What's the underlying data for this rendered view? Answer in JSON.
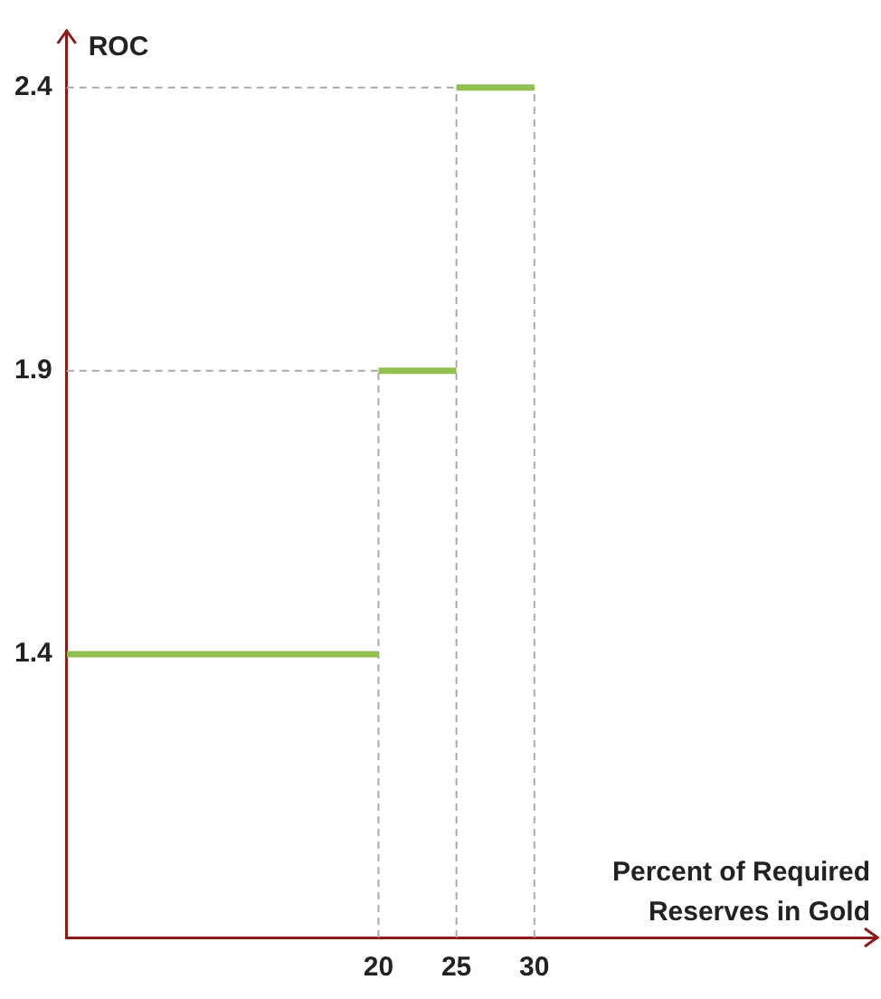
{
  "chart_data": {
    "type": "step",
    "ylabel": "ROC",
    "xlabel": "Percent of Required Reserves in Gold",
    "xlim": [
      0,
      52
    ],
    "xticks": [
      20,
      25,
      30
    ],
    "ylim": [
      0.9,
      2.5
    ],
    "yticks": [
      1.4,
      1.9,
      2.4
    ],
    "grid": false,
    "legend": false,
    "line_style": "solid",
    "marker": "none",
    "ref_lines": [
      {
        "axis": "y",
        "value": 1.9,
        "color": "#aaaaaa",
        "line_style": "dashed"
      },
      {
        "axis": "y",
        "value": 2.4,
        "color": "#aaaaaa",
        "line_style": "dashed"
      },
      {
        "axis": "x",
        "value": 20,
        "color": "#aaaaaa",
        "line_style": "dashed"
      },
      {
        "axis": "x",
        "value": 25,
        "color": "#aaaaaa",
        "line_style": "dashed"
      },
      {
        "axis": "x",
        "value": 30,
        "color": "#aaaaaa",
        "line_style": "dashed"
      }
    ],
    "series": [
      {
        "color": "#92c050",
        "x": [
          0,
          20
        ],
        "values": [
          1.4,
          1.4
        ]
      },
      {
        "color": "#92c050",
        "x": [
          20,
          25
        ],
        "values": [
          1.9,
          1.9
        ]
      },
      {
        "color": "#92c050",
        "x": [
          25,
          30
        ],
        "values": [
          2.4,
          2.4
        ]
      }
    ]
  }
}
